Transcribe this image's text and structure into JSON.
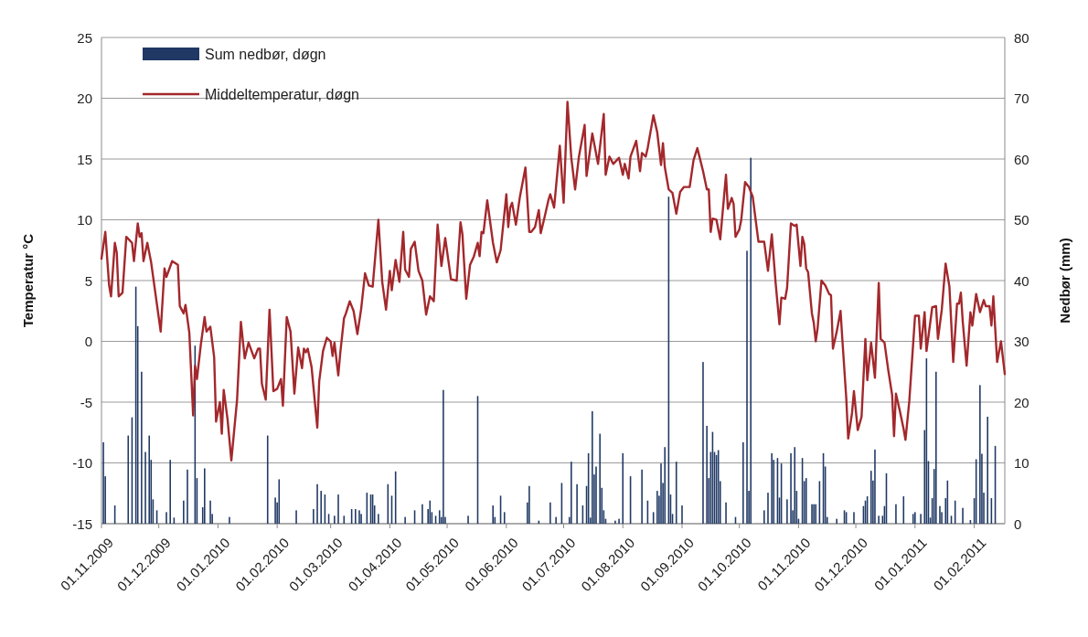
{
  "chart_data": {
    "type": "line",
    "ylabel": "Temperatur °C",
    "y2label": "Nedbør (mm)",
    "xlim": [
      "2009-11-01",
      "2011-02-17"
    ],
    "xticks": [
      {
        "value": "2009-11-01",
        "label": "01.11.2009"
      },
      {
        "value": "2009-12-01",
        "label": "01.12.2009"
      },
      {
        "value": "2010-01-01",
        "label": "01.01.2010"
      },
      {
        "value": "2010-02-01",
        "label": "01.02.2010"
      },
      {
        "value": "2010-03-01",
        "label": "01.03.2010"
      },
      {
        "value": "2010-04-01",
        "label": "01.04.2010"
      },
      {
        "value": "2010-05-01",
        "label": "01.05.2010"
      },
      {
        "value": "2010-06-01",
        "label": "01.06.2010"
      },
      {
        "value": "2010-07-01",
        "label": "01.07.2010"
      },
      {
        "value": "2010-08-01",
        "label": "01.08.2010"
      },
      {
        "value": "2010-09-01",
        "label": "01.09.2010"
      },
      {
        "value": "2010-10-01",
        "label": "01.10.2010"
      },
      {
        "value": "2010-11-01",
        "label": "01.11.2010"
      },
      {
        "value": "2010-12-01",
        "label": "01.12.2010"
      },
      {
        "value": "2011-01-01",
        "label": "01.01.2011"
      },
      {
        "value": "2011-02-01",
        "label": "01.02.2011"
      }
    ],
    "ylim": [
      -15,
      25
    ],
    "yticks": [
      -15,
      -10,
      -5,
      0,
      5,
      10,
      15,
      20,
      25
    ],
    "y2lim": [
      0,
      80
    ],
    "y2ticks": [
      0,
      10,
      20,
      30,
      40,
      50,
      60,
      70,
      80
    ],
    "grid": "y",
    "legend": "top left",
    "series": [
      {
        "name": "Sum nedbør, døgn",
        "type": "bar",
        "axis": "y2",
        "color": "#1f3864",
        "x": [
          "2009-11-02",
          "2009-11-03",
          "2009-11-08",
          "2009-11-15",
          "2009-11-17",
          "2009-11-19",
          "2009-11-20",
          "2009-11-22",
          "2009-11-24",
          "2009-11-26",
          "2009-11-27",
          "2009-11-28",
          "2009-11-30",
          "2009-12-05",
          "2009-12-07",
          "2009-12-09",
          "2009-12-14",
          "2009-12-16",
          "2009-12-20",
          "2009-12-21",
          "2009-12-24",
          "2009-12-25",
          "2009-12-28",
          "2009-12-29",
          "2010-01-07",
          "2010-01-27",
          "2010-01-31",
          "2010-02-01",
          "2010-02-02",
          "2010-02-11",
          "2010-02-20",
          "2010-02-22",
          "2010-02-24",
          "2010-02-26",
          "2010-02-28",
          "2010-03-03",
          "2010-03-05",
          "2010-03-08",
          "2010-03-12",
          "2010-03-14",
          "2010-03-16",
          "2010-03-17",
          "2010-03-20",
          "2010-03-22",
          "2010-03-23",
          "2010-03-24",
          "2010-03-26",
          "2010-03-31",
          "2010-04-02",
          "2010-04-04",
          "2010-04-09",
          "2010-04-14",
          "2010-04-18",
          "2010-04-21",
          "2010-04-22",
          "2010-04-23",
          "2010-04-25",
          "2010-04-27",
          "2010-04-28",
          "2010-04-29",
          "2010-04-30",
          "2010-05-12",
          "2010-05-17",
          "2010-05-25",
          "2010-05-26",
          "2010-05-29",
          "2010-05-31",
          "2010-06-12",
          "2010-06-13",
          "2010-06-18",
          "2010-06-24",
          "2010-06-27",
          "2010-06-30",
          "2010-07-04",
          "2010-07-05",
          "2010-07-08",
          "2010-07-11",
          "2010-07-13",
          "2010-07-14",
          "2010-07-15",
          "2010-07-16",
          "2010-07-17",
          "2010-07-18",
          "2010-07-20",
          "2010-07-21",
          "2010-07-22",
          "2010-07-23",
          "2010-07-28",
          "2010-07-30",
          "2010-08-01",
          "2010-08-05",
          "2010-08-11",
          "2010-08-14",
          "2010-08-17",
          "2010-08-19",
          "2010-08-20",
          "2010-08-21",
          "2010-08-22",
          "2010-08-23",
          "2010-08-25",
          "2010-08-26",
          "2010-08-27",
          "2010-08-29",
          "2010-09-01",
          "2010-09-12",
          "2010-09-14",
          "2010-09-15",
          "2010-09-16",
          "2010-09-17",
          "2010-09-18",
          "2010-09-19",
          "2010-09-20",
          "2010-09-21",
          "2010-09-24",
          "2010-09-29",
          "2010-10-03",
          "2010-10-05",
          "2010-10-06",
          "2010-10-07",
          "2010-10-14",
          "2010-10-16",
          "2010-10-18",
          "2010-10-19",
          "2010-10-21",
          "2010-10-22",
          "2010-10-23",
          "2010-10-26",
          "2010-10-28",
          "2010-10-29",
          "2010-10-30",
          "2010-10-31",
          "2010-11-01",
          "2010-11-03",
          "2010-11-04",
          "2010-11-05",
          "2010-11-08",
          "2010-11-09",
          "2010-11-10",
          "2010-11-12",
          "2010-11-14",
          "2010-11-15",
          "2010-11-16",
          "2010-11-21",
          "2010-11-25",
          "2010-11-26",
          "2010-11-30",
          "2010-12-05",
          "2010-12-06",
          "2010-12-07",
          "2010-12-09",
          "2010-12-10",
          "2010-12-11",
          "2010-12-13",
          "2010-12-15",
          "2010-12-16",
          "2010-12-17",
          "2010-12-22",
          "2010-12-26",
          "2010-12-31",
          "2011-01-01",
          "2011-01-04",
          "2011-01-06",
          "2011-01-07",
          "2011-01-08",
          "2011-01-09",
          "2011-01-10",
          "2011-01-11",
          "2011-01-12",
          "2011-01-14",
          "2011-01-15",
          "2011-01-17",
          "2011-01-18",
          "2011-01-20",
          "2011-01-22",
          "2011-01-26",
          "2011-01-30",
          "2011-02-01",
          "2011-02-02",
          "2011-02-04",
          "2011-02-05",
          "2011-02-06",
          "2011-02-08",
          "2011-02-10",
          "2011-02-12"
        ],
        "values": [
          13.4,
          7.8,
          3.0,
          14.5,
          17.5,
          39.0,
          32.5,
          25.0,
          11.8,
          14.5,
          10.5,
          4.0,
          2.2,
          1.9,
          10.5,
          1.0,
          3.8,
          8.9,
          29.3,
          7.5,
          2.7,
          9.1,
          3.8,
          1.6,
          1.1,
          14.5,
          4.3,
          3.5,
          7.3,
          2.2,
          2.4,
          6.5,
          5.4,
          4.8,
          1.6,
          1.3,
          4.8,
          1.3,
          2.4,
          2.4,
          2.2,
          1.6,
          5.1,
          4.8,
          4.8,
          3.0,
          1.6,
          6.5,
          4.6,
          8.6,
          1.1,
          2.2,
          3.2,
          2.4,
          3.8,
          1.9,
          1.3,
          2.2,
          1.1,
          22.0,
          1.1,
          1.3,
          21.0,
          3.0,
          1.1,
          4.6,
          1.9,
          3.5,
          6.2,
          0.5,
          3.5,
          1.1,
          6.7,
          1.1,
          10.2,
          6.5,
          3.0,
          6.2,
          11.6,
          1.0,
          18.5,
          8.1,
          9.4,
          14.8,
          5.9,
          2.2,
          0.8,
          0.5,
          0.8,
          11.6,
          7.8,
          8.9,
          3.8,
          1.9,
          5.4,
          4.6,
          9.9,
          6.7,
          12.6,
          53.8,
          4.8,
          1.6,
          10.2,
          3.0,
          26.6,
          16.1,
          7.5,
          11.8,
          15.1,
          11.8,
          11.3,
          12.1,
          7.0,
          3.5,
          1.1,
          13.4,
          44.9,
          5.4,
          60.2,
          2.2,
          5.1,
          11.6,
          10.5,
          10.8,
          4.3,
          9.9,
          4.0,
          11.6,
          2.2,
          12.6,
          5.4,
          0.8,
          10.8,
          7.0,
          7.5,
          3.2,
          3.2,
          3.2,
          7.0,
          11.6,
          9.4,
          1.1,
          0.8,
          2.2,
          1.9,
          1.9,
          2.9,
          3.8,
          4.5,
          8.7,
          7.1,
          12.2,
          1.3,
          1.3,
          2.9,
          8.3,
          3.2,
          4.5,
          1.6,
          1.9,
          1.6,
          15.4,
          27.2,
          10.3,
          1.0,
          4.2,
          9.0,
          25.0,
          2.9,
          1.9,
          4.2,
          7.1,
          1.3,
          3.8,
          2.6,
          0.6,
          4.2,
          10.6,
          22.8,
          11.5,
          5.1,
          17.6,
          4.2,
          12.8
        ]
      },
      {
        "name": "Middeltemperatur, døgn",
        "color": "#a3282c",
        "x": [
          "2009-11-01",
          "2009-11-03",
          "2009-11-05",
          "2009-11-06",
          "2009-11-08",
          "2009-11-09",
          "2009-11-10",
          "2009-11-12",
          "2009-11-14",
          "2009-11-17",
          "2009-11-18",
          "2009-11-20",
          "2009-11-21",
          "2009-11-22",
          "2009-11-23",
          "2009-11-25",
          "2009-11-27",
          "2009-12-02",
          "2009-12-04",
          "2009-12-05",
          "2009-12-08",
          "2009-12-11",
          "2009-12-12",
          "2009-12-14",
          "2009-12-15",
          "2009-12-17",
          "2009-12-19",
          "2009-12-20",
          "2009-12-21",
          "2009-12-23",
          "2009-12-25",
          "2009-12-26",
          "2009-12-28",
          "2009-12-30",
          "2009-12-31",
          "2010-01-02",
          "2010-01-03",
          "2010-01-04",
          "2010-01-06",
          "2010-01-08",
          "2010-01-11",
          "2010-01-13",
          "2010-01-15",
          "2010-01-17",
          "2010-01-20",
          "2010-01-22",
          "2010-01-23",
          "2010-01-24",
          "2010-01-26",
          "2010-01-28",
          "2010-01-30",
          "2010-02-01",
          "2010-02-03",
          "2010-02-04",
          "2010-02-06",
          "2010-02-08",
          "2010-02-10",
          "2010-02-12",
          "2010-02-14",
          "2010-02-15",
          "2010-02-16",
          "2010-02-17",
          "2010-02-19",
          "2010-02-22",
          "2010-02-23",
          "2010-02-25",
          "2010-02-27",
          "2010-03-01",
          "2010-03-02",
          "2010-03-03",
          "2010-03-05",
          "2010-03-06",
          "2010-03-08",
          "2010-03-09",
          "2010-03-11",
          "2010-03-13",
          "2010-03-15",
          "2010-03-17",
          "2010-03-19",
          "2010-03-21",
          "2010-03-23",
          "2010-03-26",
          "2010-03-28",
          "2010-03-30",
          "2010-04-01",
          "2010-04-02",
          "2010-04-04",
          "2010-04-06",
          "2010-04-08",
          "2010-04-09",
          "2010-04-11",
          "2010-04-12",
          "2010-04-14",
          "2010-04-16",
          "2010-04-18",
          "2010-04-20",
          "2010-04-22",
          "2010-04-24",
          "2010-04-26",
          "2010-04-28",
          "2010-04-30",
          "2010-05-03",
          "2010-05-06",
          "2010-05-08",
          "2010-05-09",
          "2010-05-11",
          "2010-05-13",
          "2010-05-15",
          "2010-05-17",
          "2010-05-18",
          "2010-05-19",
          "2010-05-20",
          "2010-05-22",
          "2010-05-25",
          "2010-05-27",
          "2010-05-29",
          "2010-06-01",
          "2010-06-02",
          "2010-06-03",
          "2010-06-04",
          "2010-06-06",
          "2010-06-08",
          "2010-06-11",
          "2010-06-13",
          "2010-06-14",
          "2010-06-16",
          "2010-06-18",
          "2010-06-19",
          "2010-06-21",
          "2010-06-23",
          "2010-06-24",
          "2010-06-26",
          "2010-06-29",
          "2010-07-01",
          "2010-07-03",
          "2010-07-05",
          "2010-07-07",
          "2010-07-09",
          "2010-07-12",
          "2010-07-13",
          "2010-07-16",
          "2010-07-19",
          "2010-07-22",
          "2010-07-23",
          "2010-07-25",
          "2010-07-27",
          "2010-07-30",
          "2010-08-01",
          "2010-08-02",
          "2010-08-04",
          "2010-08-05",
          "2010-08-08",
          "2010-08-10",
          "2010-08-11",
          "2010-08-13",
          "2010-08-14",
          "2010-08-17",
          "2010-08-19",
          "2010-08-21",
          "2010-08-22",
          "2010-08-23",
          "2010-08-25",
          "2010-08-27",
          "2010-08-29",
          "2010-08-31",
          "2010-09-02",
          "2010-09-05",
          "2010-09-07",
          "2010-09-09",
          "2010-09-12",
          "2010-09-14",
          "2010-09-15",
          "2010-09-16",
          "2010-09-17",
          "2010-09-19",
          "2010-09-21",
          "2010-09-24",
          "2010-09-25",
          "2010-09-27",
          "2010-09-28",
          "2010-09-29",
          "2010-10-01",
          "2010-10-02",
          "2010-10-04",
          "2010-10-06",
          "2010-10-08",
          "2010-10-11",
          "2010-10-14",
          "2010-10-16",
          "2010-10-18",
          "2010-10-20",
          "2010-10-22",
          "2010-10-23",
          "2010-10-25",
          "2010-10-26",
          "2010-10-28",
          "2010-10-30",
          "2010-10-31",
          "2010-11-02",
          "2010-11-03",
          "2010-11-04",
          "2010-11-05",
          "2010-11-06",
          "2010-11-08",
          "2010-11-09",
          "2010-11-10",
          "2010-11-11",
          "2010-11-13",
          "2010-11-15",
          "2010-11-17",
          "2010-11-18",
          "2010-11-19",
          "2010-11-21",
          "2010-11-23",
          "2010-11-24",
          "2010-11-26",
          "2010-11-27",
          "2010-11-29",
          "2010-11-30",
          "2010-12-02",
          "2010-12-04",
          "2010-12-06",
          "2010-12-07",
          "2010-12-09",
          "2010-12-11",
          "2010-12-13",
          "2010-12-14",
          "2010-12-16",
          "2010-12-18",
          "2010-12-20",
          "2010-12-21",
          "2010-12-22",
          "2010-12-24",
          "2010-12-26",
          "2010-12-27",
          "2010-12-29",
          "2011-01-01",
          "2011-01-03",
          "2011-01-04",
          "2011-01-06",
          "2011-01-07",
          "2011-01-10",
          "2011-01-12",
          "2011-01-13",
          "2011-01-15",
          "2011-01-17",
          "2011-01-19",
          "2011-01-21",
          "2011-01-23",
          "2011-01-24",
          "2011-01-25",
          "2011-01-26",
          "2011-01-28",
          "2011-01-30",
          "2011-01-31",
          "2011-02-02",
          "2011-02-04",
          "2011-02-06",
          "2011-02-07",
          "2011-02-09",
          "2011-02-10",
          "2011-02-11",
          "2011-02-13",
          "2011-02-15",
          "2011-02-17"
        ],
        "values": [
          6.8,
          9.0,
          4.6,
          3.7,
          8.1,
          7.3,
          3.7,
          4.0,
          8.6,
          8.1,
          6.6,
          9.7,
          8.6,
          8.9,
          6.6,
          8.1,
          6.5,
          0.8,
          6.0,
          5.3,
          6.6,
          6.3,
          2.9,
          2.3,
          3.0,
          0.7,
          -6.1,
          -2.0,
          -3.1,
          -0.3,
          2.0,
          0.8,
          1.2,
          -1.3,
          -6.6,
          -5.0,
          -7.6,
          -4.0,
          -6.4,
          -9.8,
          -4.8,
          1.6,
          -1.4,
          -0.1,
          -1.4,
          -0.6,
          -0.6,
          -3.5,
          -4.8,
          2.6,
          -4.1,
          -3.9,
          -3.1,
          -5.3,
          2.0,
          0.8,
          -4.3,
          -0.5,
          -2.2,
          -0.6,
          -0.9,
          -0.6,
          -2.1,
          -7.1,
          -3.3,
          -0.8,
          0.3,
          0.0,
          -1.2,
          -0.1,
          -2.8,
          -1.0,
          1.9,
          2.3,
          3.3,
          2.5,
          0.6,
          2.7,
          5.6,
          4.6,
          4.5,
          10.0,
          4.9,
          2.6,
          5.8,
          4.2,
          6.7,
          4.9,
          9.0,
          5.9,
          5.3,
          7.6,
          8.2,
          5.8,
          5.0,
          2.2,
          3.7,
          3.3,
          9.6,
          6.2,
          8.5,
          5.1,
          5.0,
          9.8,
          8.8,
          3.5,
          6.3,
          7.0,
          8.1,
          7.0,
          9.0,
          8.9,
          11.6,
          8.1,
          6.5,
          7.5,
          12.1,
          9.4,
          11.0,
          11.4,
          9.6,
          11.8,
          14.3,
          9.0,
          9.0,
          9.4,
          10.8,
          8.9,
          10.2,
          11.6,
          12.1,
          11.0,
          16.1,
          11.4,
          19.7,
          15.1,
          12.5,
          15.2,
          17.8,
          13.6,
          17.1,
          14.6,
          18.7,
          13.7,
          15.2,
          14.6,
          15.1,
          13.7,
          14.6,
          13.4,
          15.2,
          16.5,
          14.0,
          15.5,
          15.2,
          15.9,
          18.6,
          17.2,
          14.5,
          16.3,
          14.3,
          12.5,
          12.2,
          10.5,
          12.3,
          12.7,
          12.7,
          14.9,
          15.9,
          14.0,
          12.5,
          12.5,
          9.0,
          10.1,
          10.0,
          8.4,
          13.7,
          10.9,
          11.8,
          11.3,
          8.6,
          9.2,
          10.0,
          13.1,
          12.7,
          11.9,
          8.2,
          8.2,
          5.8,
          8.8,
          4.8,
          1.4,
          3.6,
          3.5,
          4.4,
          9.7,
          9.5,
          9.6,
          6.2,
          8.6,
          8.0,
          6.0,
          5.7,
          2.3,
          1.5,
          0.0,
          1.1,
          5.0,
          4.6,
          3.9,
          3.8,
          -0.6,
          0.8,
          2.5,
          0.0,
          -4.7,
          -8.0,
          -5.9,
          -4.1,
          -7.3,
          -6.2,
          0.2,
          -3.2,
          -0.1,
          -3.0,
          4.8,
          0.2,
          -0.1,
          -2.4,
          -4.4,
          -7.8,
          -4.3,
          -5.7,
          -7.2,
          -8.1,
          -4.9,
          2.1,
          2.1,
          -0.6,
          2.4,
          -0.8,
          2.8,
          2.9,
          0.2,
          2.6,
          6.4,
          4.5,
          -1.7,
          3.1,
          3.1,
          4.0,
          1.6,
          -2.0,
          2.4,
          1.3,
          3.9,
          2.4,
          3.4,
          2.9,
          2.9,
          1.3,
          3.7,
          -1.7,
          0.0,
          -2.7
        ]
      }
    ]
  }
}
